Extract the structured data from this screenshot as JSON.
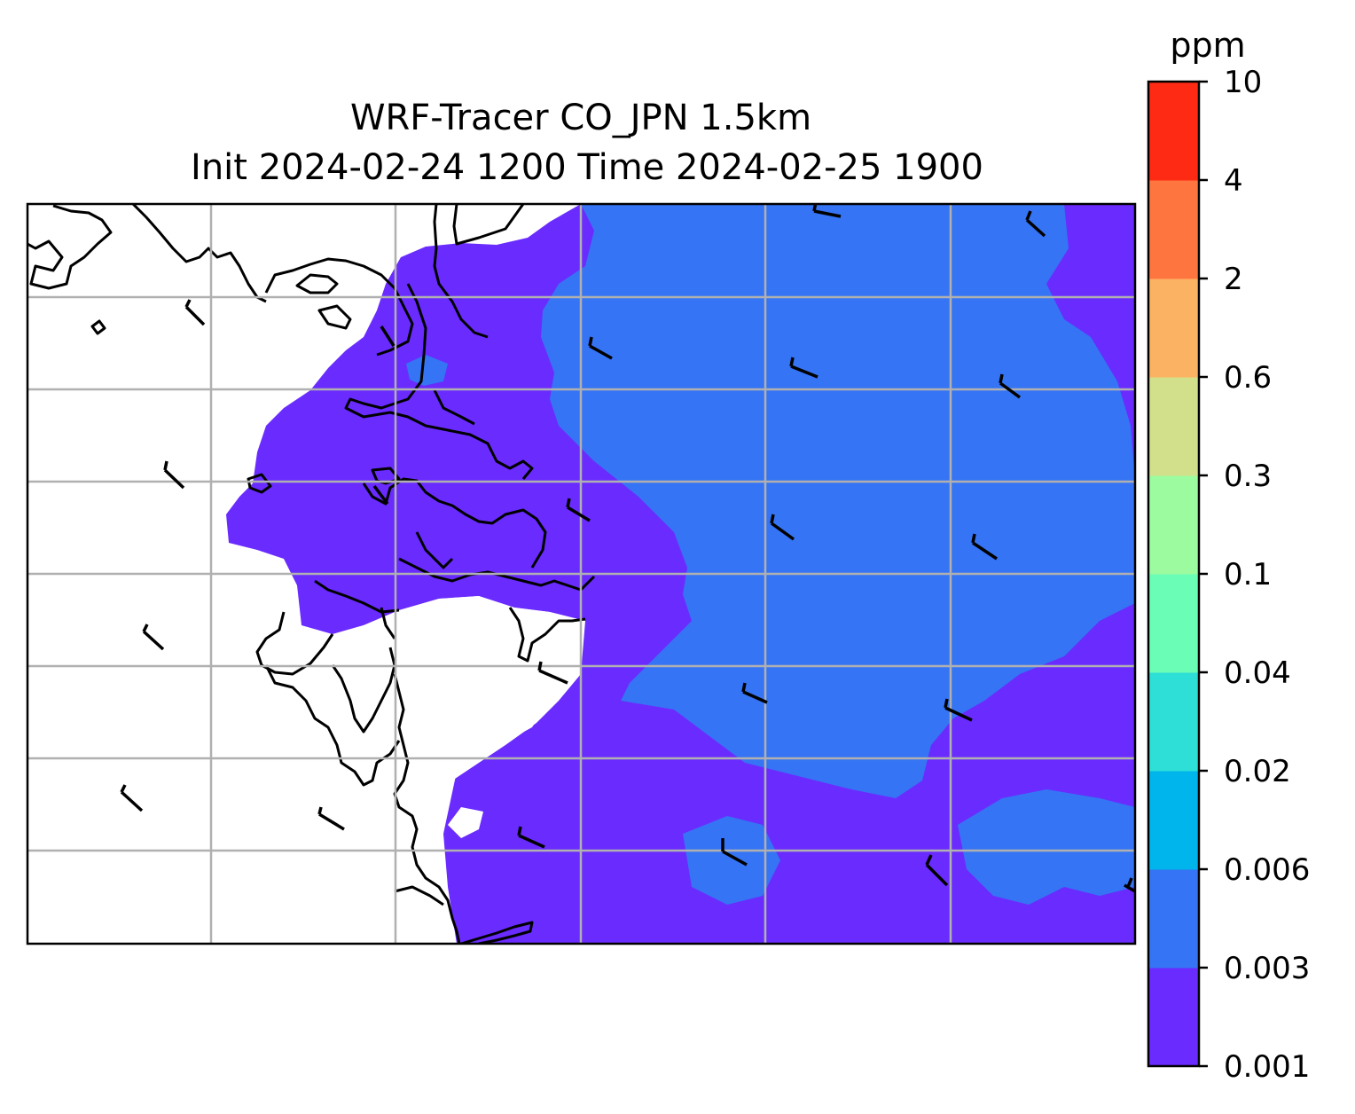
{
  "title": {
    "line1": "WRF-Tracer CO_JPN 1.5km",
    "line2": "Init 2024-02-24 1200 Time 2024-02-25 1900"
  },
  "colorbar": {
    "unit": "ppm",
    "levels": [
      "0.001",
      "0.003",
      "0.006",
      "0.02",
      "0.04",
      "0.1",
      "0.3",
      "0.6",
      "2",
      "4",
      "10"
    ],
    "colors": [
      "#6a2bff",
      "#3574f4",
      "#00b4ec",
      "#2ddfd6",
      "#6afdb5",
      "#9cfb9f",
      "#d2e08b",
      "#fcb263",
      "#ff753f",
      "#ff2a14"
    ]
  },
  "map": {
    "fill_colors": {
      "level_0_001": "#6a2bff",
      "level_0_003": "#3574f4"
    },
    "gridlines": {
      "vertical": 5,
      "horizontal": 7,
      "color": "#b0b0b0"
    },
    "wind_barbs": 24
  }
}
